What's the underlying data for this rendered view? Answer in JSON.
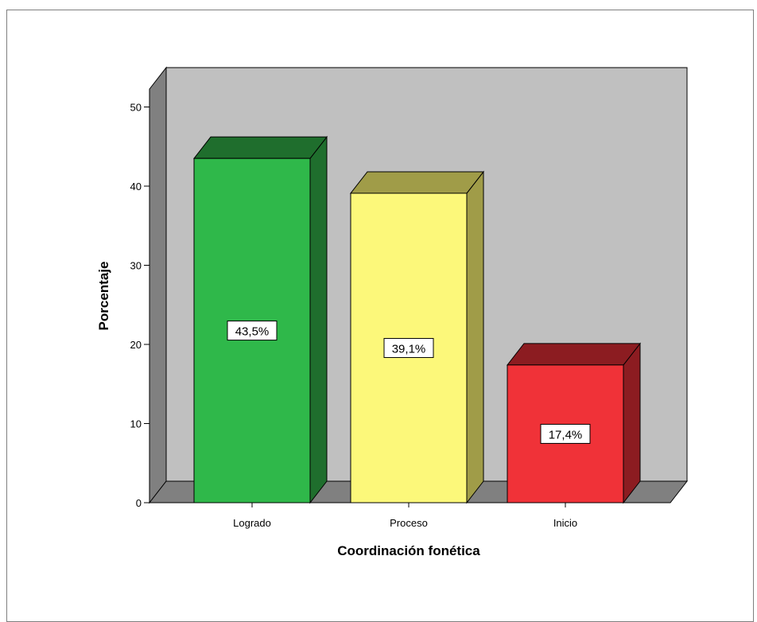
{
  "chart_data": {
    "type": "bar",
    "title": "",
    "xlabel": "Coordinación fonética",
    "ylabel": "Porcentaje",
    "categories": [
      "Logrado",
      "Proceso",
      "Inicio"
    ],
    "values": [
      43.5,
      39.1,
      17.4
    ],
    "data_labels": [
      "43,5%",
      "39,1%",
      "17,4%"
    ],
    "colors": [
      {
        "front": "#2fb84a",
        "top": "#1f6e2d",
        "side": "#1f6e2d"
      },
      {
        "front": "#fcf87a",
        "top": "#a09c48",
        "side": "#a09c48"
      },
      {
        "front": "#f03238",
        "top": "#8c1c21",
        "side": "#8c1c21"
      }
    ],
    "yticks": [
      "0",
      "10",
      "20",
      "30",
      "40",
      "50"
    ],
    "ylim": [
      0,
      50
    ],
    "wall_color": "#c0c0c0",
    "floor_color": "#808080",
    "legend": "none",
    "grid": false
  }
}
